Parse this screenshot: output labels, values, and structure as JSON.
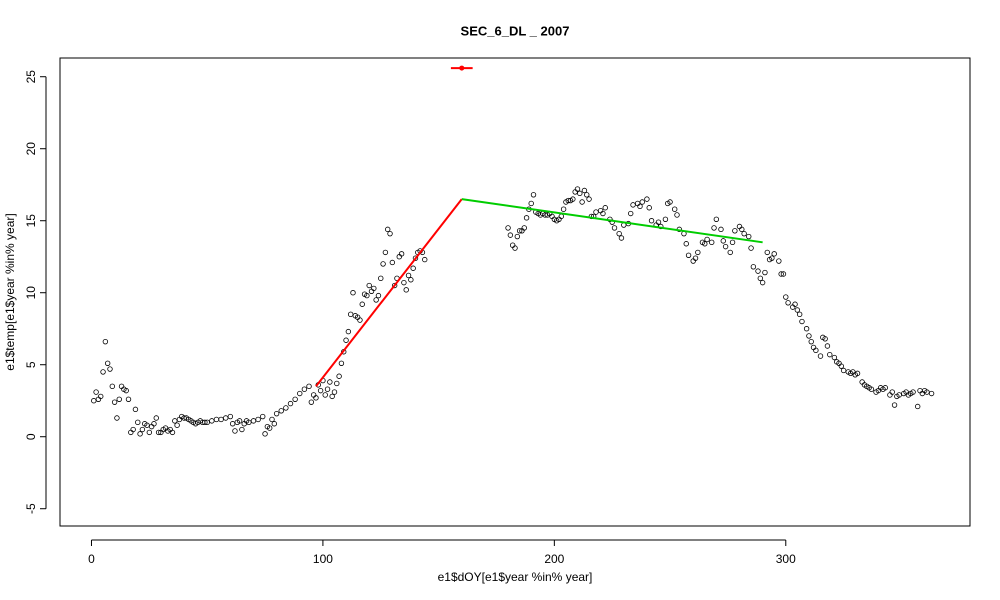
{
  "chart_data": {
    "type": "scatter",
    "title": "SEC_6_DL _ 2007",
    "x_label": "e1$dOY[e1$year %in% year]",
    "y_label": "e1$temp[e1$year %in% year]",
    "xlim": [
      -13.6,
      379.6
    ],
    "ylim": [
      -6.2,
      26.3
    ],
    "xticks": [
      0,
      100,
      200,
      300
    ],
    "yticks": [
      -5,
      0,
      5,
      10,
      15,
      20,
      25
    ],
    "points": {
      "color": "#000000",
      "x": [
        1,
        2,
        3,
        4,
        5,
        6,
        7,
        8,
        9,
        10,
        11,
        12,
        13,
        14,
        15,
        16,
        17,
        18,
        19,
        20,
        21,
        22,
        23,
        24,
        25,
        26,
        27,
        28,
        29,
        30,
        31,
        32,
        33,
        34,
        35,
        36,
        37,
        38,
        39,
        40,
        41,
        42,
        43,
        44,
        45,
        46,
        47,
        48,
        49,
        50,
        52,
        54,
        56,
        58,
        60,
        61,
        62,
        63,
        64,
        65,
        66,
        67,
        68,
        70,
        72,
        74,
        75,
        76,
        77,
        78,
        79,
        80,
        82,
        84,
        86,
        88,
        90,
        92,
        94,
        95,
        96,
        97,
        98,
        99,
        100,
        101,
        102,
        103,
        104,
        105,
        106,
        107,
        108,
        109,
        110,
        111,
        112,
        113,
        114,
        115,
        116,
        117,
        118,
        119,
        120,
        121,
        122,
        123,
        124,
        125,
        126,
        127,
        128,
        129,
        130,
        131,
        132,
        133,
        134,
        135,
        136,
        137,
        138,
        139,
        140,
        141,
        142,
        143,
        144,
        180,
        181,
        182,
        183,
        184,
        185,
        186,
        187,
        188,
        189,
        190,
        191,
        192,
        193,
        194,
        195,
        196,
        197,
        198,
        199,
        200,
        201,
        202,
        203,
        204,
        205,
        206,
        207,
        208,
        209,
        210,
        211,
        212,
        213,
        214,
        215,
        216,
        217,
        218,
        220,
        221,
        222,
        224,
        225,
        226,
        228,
        229,
        230,
        232,
        233,
        234,
        236,
        237,
        238,
        240,
        241,
        242,
        244,
        245,
        246,
        248,
        249,
        250,
        252,
        253,
        254,
        256,
        257,
        258,
        260,
        261,
        262,
        264,
        265,
        266,
        268,
        269,
        270,
        272,
        273,
        274,
        276,
        277,
        278,
        280,
        281,
        282,
        284,
        285,
        286,
        288,
        289,
        290,
        291,
        292,
        293,
        294,
        295,
        297,
        298,
        299,
        300,
        301,
        303,
        304,
        305,
        306,
        307,
        309,
        310,
        311,
        312,
        313,
        315,
        316,
        317,
        318,
        319,
        321,
        322,
        323,
        324,
        325,
        327,
        328,
        329,
        330,
        331,
        333,
        334,
        335,
        336,
        337,
        339,
        340,
        341,
        342,
        343,
        345,
        346,
        347,
        348,
        349,
        351,
        352,
        353,
        354,
        355,
        357,
        358,
        359,
        360,
        361,
        363
      ],
      "y": [
        2.5,
        3.1,
        2.6,
        2.8,
        4.5,
        6.6,
        5.1,
        4.7,
        3.5,
        2.4,
        1.3,
        2.6,
        3.5,
        3.3,
        3.2,
        2.6,
        0.3,
        0.5,
        1.9,
        1.0,
        0.2,
        0.5,
        0.9,
        0.8,
        0.3,
        0.7,
        0.9,
        1.3,
        0.3,
        0.3,
        0.5,
        0.6,
        0.4,
        0.5,
        0.3,
        1.1,
        0.8,
        1.2,
        1.4,
        1.3,
        1.3,
        1.2,
        1.1,
        1.0,
        0.9,
        1.0,
        1.1,
        1.0,
        1.0,
        1.0,
        1.1,
        1.2,
        1.2,
        1.3,
        1.4,
        0.9,
        0.4,
        1.0,
        1.1,
        0.5,
        0.9,
        1.1,
        1.0,
        1.1,
        1.2,
        1.4,
        0.2,
        0.7,
        0.6,
        1.2,
        0.9,
        1.6,
        1.8,
        2.0,
        2.3,
        2.6,
        3.0,
        3.3,
        3.5,
        2.4,
        2.9,
        2.7,
        3.6,
        3.2,
        3.9,
        2.9,
        3.3,
        3.8,
        2.8,
        3.1,
        3.7,
        4.2,
        5.1,
        5.9,
        6.7,
        7.3,
        8.5,
        10.0,
        8.4,
        8.3,
        8.1,
        9.2,
        9.9,
        9.8,
        10.5,
        10.1,
        10.3,
        9.5,
        9.8,
        11.0,
        12.0,
        12.8,
        14.4,
        14.1,
        12.1,
        10.5,
        11.0,
        12.5,
        12.7,
        10.7,
        10.2,
        11.2,
        10.9,
        11.7,
        12.4,
        12.8,
        12.9,
        12.8,
        12.3,
        14.5,
        14.0,
        13.3,
        13.1,
        13.9,
        14.3,
        14.3,
        14.5,
        15.2,
        15.8,
        16.2,
        16.8,
        15.6,
        15.5,
        15.4,
        15.5,
        15.4,
        15.4,
        15.5,
        15.3,
        15.1,
        15.0,
        15.1,
        15.3,
        15.8,
        16.3,
        16.4,
        16.4,
        16.5,
        17.0,
        17.2,
        16.9,
        16.3,
        17.1,
        16.8,
        16.5,
        15.3,
        15.3,
        15.6,
        15.7,
        15.5,
        15.9,
        15.1,
        14.9,
        14.5,
        14.1,
        13.8,
        14.7,
        14.8,
        15.5,
        16.1,
        16.2,
        16.0,
        16.3,
        16.5,
        15.9,
        15.0,
        14.7,
        14.9,
        14.6,
        15.1,
        16.2,
        16.3,
        15.8,
        15.4,
        14.4,
        14.1,
        13.4,
        12.6,
        12.2,
        12.4,
        12.8,
        13.5,
        13.4,
        13.7,
        13.5,
        14.5,
        15.1,
        14.4,
        13.6,
        13.2,
        12.8,
        13.5,
        14.3,
        14.6,
        14.4,
        14.1,
        13.9,
        13.1,
        11.8,
        11.5,
        11.0,
        10.7,
        11.4,
        12.8,
        12.3,
        12.4,
        12.7,
        12.2,
        11.3,
        11.3,
        9.7,
        9.3,
        9.0,
        9.2,
        8.8,
        8.5,
        8.0,
        7.5,
        7.0,
        6.6,
        6.2,
        6.0,
        5.6,
        6.9,
        6.8,
        6.3,
        5.7,
        5.5,
        5.2,
        5.1,
        4.9,
        4.6,
        4.5,
        4.4,
        4.5,
        4.3,
        4.4,
        3.8,
        3.6,
        3.5,
        3.4,
        3.3,
        3.1,
        3.2,
        3.4,
        3.3,
        3.4,
        2.9,
        3.1,
        2.2,
        2.8,
        2.9,
        3.0,
        3.1,
        2.9,
        3.0,
        3.1,
        2.1,
        3.2,
        3.0,
        3.2,
        3.1,
        3.0
      ]
    },
    "lines": [
      {
        "color": "#ff0000",
        "x": [
          97,
          160
        ],
        "y": [
          3.5,
          16.5
        ]
      },
      {
        "color": "#00cd00",
        "x": [
          160,
          290
        ],
        "y": [
          16.5,
          13.5
        ]
      }
    ],
    "breakpoint": {
      "color": "#ff0000",
      "x": 160,
      "y": 25.6,
      "xerr": 4.7
    }
  }
}
